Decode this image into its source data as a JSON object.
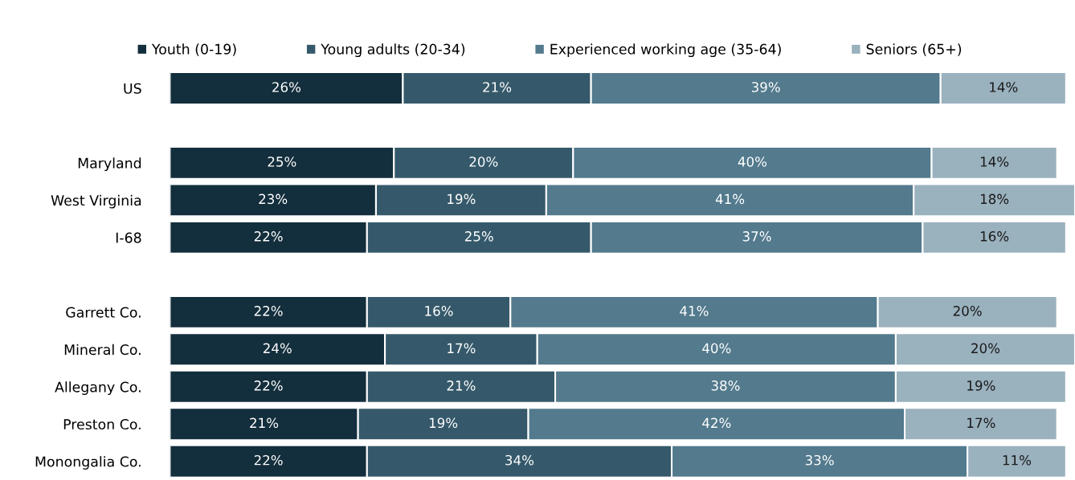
{
  "chart_data": {
    "type": "bar",
    "orientation": "horizontal",
    "stacked": true,
    "legend": "top",
    "grid": false,
    "tick_labels": "y",
    "categories": [
      "US",
      null,
      "Maryland",
      "West Virginia",
      "I-68",
      null,
      "Garrett Co.",
      "Mineral Co.",
      "Allegany Co.",
      "Preston Co.",
      "Monongalia Co."
    ],
    "series": [
      {
        "name": "Youth (0-19)",
        "color": "#132e3c",
        "values": [
          26,
          null,
          25,
          23,
          22,
          null,
          22,
          24,
          22,
          21,
          22
        ],
        "value_labels": [
          "26%",
          null,
          "25%",
          "23%",
          "22%",
          null,
          "22%",
          "24%",
          "22%",
          "21%",
          "22%"
        ]
      },
      {
        "name": "Young adults (20-34)",
        "color": "#35596a",
        "values": [
          21,
          null,
          20,
          19,
          25,
          null,
          16,
          17,
          21,
          19,
          34
        ],
        "value_labels": [
          "21%",
          null,
          "20%",
          "19%",
          "25%",
          null,
          "16%",
          "17%",
          "21%",
          "19%",
          "34%"
        ]
      },
      {
        "name": "Experienced working age (35-64)",
        "color": "#537a8d",
        "values": [
          39,
          null,
          40,
          41,
          37,
          null,
          41,
          40,
          38,
          42,
          33
        ],
        "value_labels": [
          "39%",
          null,
          "40%",
          "41%",
          "37%",
          null,
          "41%",
          "40%",
          "38%",
          "42%",
          "33%"
        ]
      },
      {
        "name": "Seniors (65+)",
        "color": "#9ab1be",
        "values": [
          14,
          null,
          14,
          18,
          16,
          null,
          20,
          20,
          19,
          17,
          11
        ],
        "value_labels": [
          "14%",
          null,
          "14%",
          "18%",
          "16%",
          null,
          "20%",
          "20%",
          "19%",
          "17%",
          "11%"
        ]
      }
    ]
  }
}
